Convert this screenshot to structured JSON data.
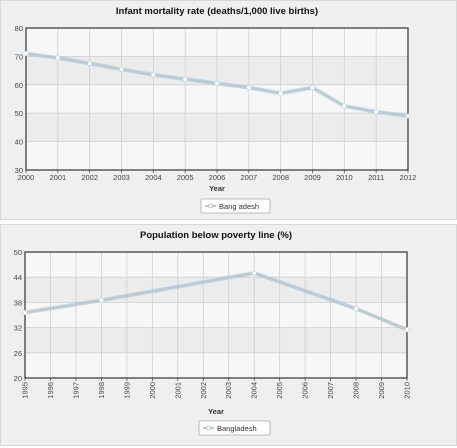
{
  "chart_data": [
    {
      "type": "line",
      "title": "Infant mortality rate (deaths/1,000 live births)",
      "xlabel": "Year",
      "ylabel": "",
      "ylim": [
        30,
        80
      ],
      "yticks": [
        30,
        40,
        50,
        60,
        70,
        80
      ],
      "x": [
        2000,
        2001,
        2002,
        2003,
        2004,
        2005,
        2006,
        2007,
        2008,
        2009,
        2010,
        2011,
        2012
      ],
      "series": [
        {
          "name": "Bang adesh",
          "values": [
            71,
            69.5,
            67.5,
            65.5,
            63.5,
            62,
            60.5,
            59,
            57,
            59,
            52.5,
            50.5,
            49
          ]
        }
      ],
      "x_tick_rotation": 0,
      "grid": true,
      "legend": "bottom",
      "colors": {
        "line": "#b8ccd8",
        "border": "#333333",
        "grid": "#cfcfcf",
        "plot_bg": "#f7f7f7"
      }
    },
    {
      "type": "line",
      "title": "Population below poverty line (%)",
      "xlabel": "Year",
      "ylabel": "",
      "ylim": [
        20,
        50
      ],
      "yticks": [
        20,
        26,
        32,
        38,
        44,
        50
      ],
      "x": [
        1995,
        1996,
        1997,
        1998,
        1999,
        2000,
        2001,
        2002,
        2003,
        2004,
        2005,
        2006,
        2007,
        2008,
        2009,
        2010
      ],
      "series": [
        {
          "name": "Bangladesh",
          "points": [
            [
              1995,
              35.6
            ],
            [
              1998,
              38.5
            ],
            [
              2004,
              45
            ],
            [
              2008,
              36.5
            ],
            [
              2010,
              31.5
            ]
          ]
        }
      ],
      "x_tick_rotation": -90,
      "grid": true,
      "legend": "bottom",
      "colors": {
        "line": "#b8ccd8",
        "border": "#333333",
        "grid": "#cfcfcf",
        "plot_bg": "#f7f7f7"
      }
    }
  ]
}
